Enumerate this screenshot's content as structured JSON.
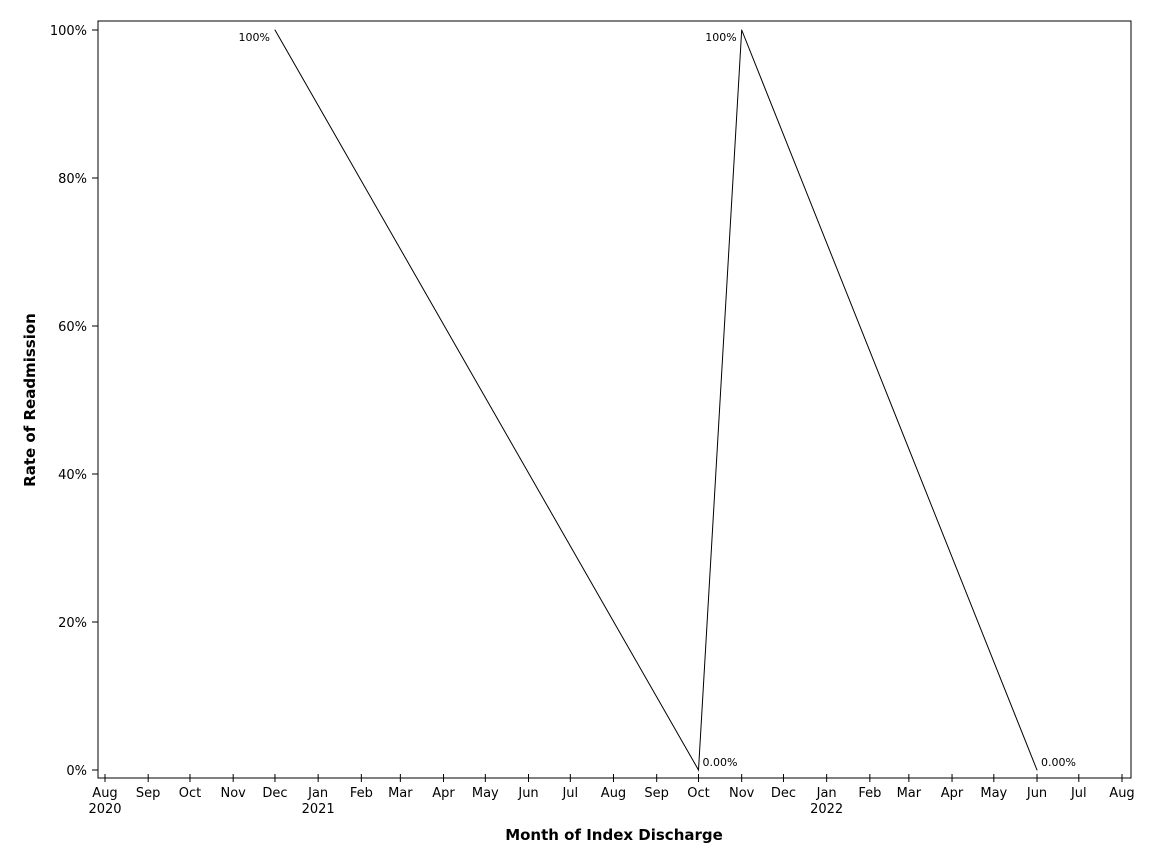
{
  "chart_data": {
    "type": "line",
    "xlabel": "Month of Index Discharge",
    "ylabel": "Rate of Readmission",
    "x_axis": {
      "ticks": [
        "2020-08",
        "2020-09",
        "2020-10",
        "2020-11",
        "2020-12",
        "2021-01",
        "2021-02",
        "2021-03",
        "2021-04",
        "2021-05",
        "2021-06",
        "2021-07",
        "2021-08",
        "2021-09",
        "2021-10",
        "2021-11",
        "2021-12",
        "2022-01",
        "2022-02",
        "2022-03",
        "2022-04",
        "2022-05",
        "2022-06",
        "2022-07",
        "2022-08"
      ],
      "tick_labels": [
        "Aug",
        "Sep",
        "Oct",
        "Nov",
        "Dec",
        "Jan",
        "Feb",
        "Mar",
        "Apr",
        "May",
        "Jun",
        "Jul",
        "Aug",
        "Sep",
        "Oct",
        "Nov",
        "Dec",
        "Jan",
        "Feb",
        "Mar",
        "Apr",
        "May",
        "Jun",
        "Jul",
        "Aug"
      ],
      "year_labels": [
        {
          "at": "2020-08",
          "text": "2020"
        },
        {
          "at": "2021-01",
          "text": "2021"
        },
        {
          "at": "2022-01",
          "text": "2022"
        }
      ]
    },
    "y_axis": {
      "ylim": [
        0,
        100
      ],
      "ticks": [
        0,
        20,
        40,
        60,
        80,
        100
      ],
      "tick_labels": [
        "0%",
        "20%",
        "40%",
        "60%",
        "80%",
        "100%"
      ]
    },
    "grid": false,
    "series": [
      {
        "points": [
          {
            "x": "2020-12-01",
            "y": 100,
            "label": "100%"
          },
          {
            "x": "2021-10-01",
            "y": 0,
            "label": "0.00%"
          },
          {
            "x": "2021-11-01",
            "y": 100,
            "label": "100%"
          },
          {
            "x": "2022-06-01",
            "y": 0,
            "label": "0.00%"
          }
        ]
      }
    ]
  }
}
